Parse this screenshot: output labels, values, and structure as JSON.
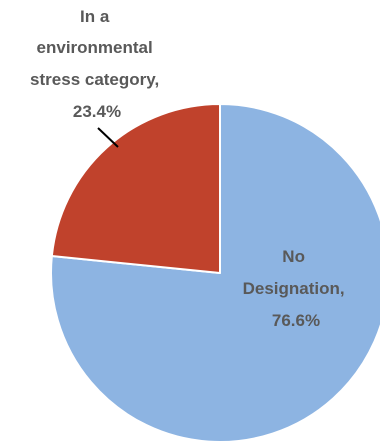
{
  "chart_data": {
    "type": "pie",
    "categories": [
      "No Designation",
      "In a environmental stress category"
    ],
    "values": [
      76.6,
      23.4
    ],
    "colors": [
      "#8DB4E2",
      "#C0422C"
    ],
    "labels": {
      "no_designation": {
        "lines": [
          "No",
          "Designation,",
          "76.6%"
        ]
      },
      "stress_category": {
        "lines": [
          "In a",
          "environmental",
          "stress category,",
          "23.4%"
        ]
      }
    }
  }
}
